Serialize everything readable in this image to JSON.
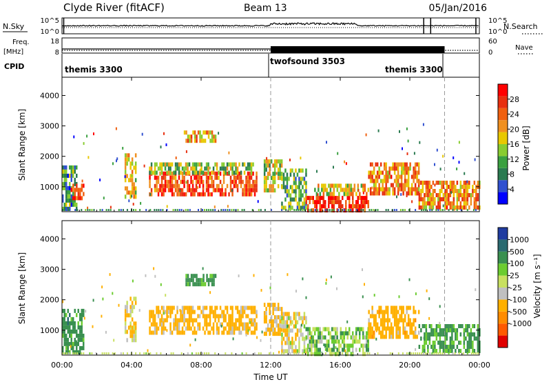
{
  "header": {
    "station": "Clyde River (fitACF)",
    "beam": "Beam 13",
    "date": "05/Jan/2016"
  },
  "noise_panel": {
    "left_label": "N.Sky",
    "right_label": "N.Search",
    "left_ticks": [
      "10^5",
      "10^0"
    ],
    "right_ticks": [
      "10^5",
      "10^0"
    ]
  },
  "freq_panel": {
    "left_label_line1": "Freq.",
    "left_label_line2": "[MHz]",
    "right_label": "Nave",
    "left_ticks": [
      "18",
      "8"
    ],
    "right_ticks": [
      "60",
      "0"
    ]
  },
  "cpid": {
    "label": "CPID",
    "segments": [
      {
        "name": "themis 3300",
        "start_hour": 0,
        "end_hour": 12
      },
      {
        "name": "twofsound 3503",
        "start_hour": 12,
        "end_hour": 22
      },
      {
        "name": "themis 3300",
        "start_hour": 22,
        "end_hour": 24
      }
    ],
    "right_label_text": "themis 3300"
  },
  "colors": {
    "power_scale": [
      "#0000ff",
      "#3050d0",
      "#2a7a50",
      "#3aa040",
      "#88cc30",
      "#e8c800",
      "#f09020",
      "#f06010",
      "#e83010",
      "#ff0000"
    ],
    "velocity_scale": [
      "#e00000",
      "#ff5a00",
      "#ff8c00",
      "#ffb000",
      "#c0c0c0",
      "#c8e060",
      "#6ccc30",
      "#3a9050",
      "#2a6a70",
      "#203ca0"
    ]
  },
  "chart_data": [
    {
      "type": "heatmap",
      "name": "power",
      "ylabel": "Slant Range [km]",
      "xlabel": "",
      "ylim": [
        180,
        4600
      ],
      "xlim": [
        0,
        24
      ],
      "y_ticks": [
        1000,
        2000,
        3000,
        4000
      ],
      "x_ticks": [
        "00:00",
        "04:00",
        "08:00",
        "12:00",
        "16:00",
        "20:00",
        "00:00"
      ],
      "colorbar": {
        "label": "Power [dB]",
        "ticks": [
          4,
          8,
          12,
          16,
          20,
          24,
          28
        ],
        "range": [
          0,
          32
        ]
      },
      "features": [
        {
          "t0": 0.0,
          "t1": 0.8,
          "r0": 300,
          "r1": 1700,
          "value": 10
        },
        {
          "t0": 0.5,
          "t1": 1.2,
          "r0": 600,
          "r1": 1100,
          "value": 26
        },
        {
          "t0": 3.6,
          "t1": 4.2,
          "r0": 700,
          "r1": 2100,
          "value": 18
        },
        {
          "t0": 5.0,
          "t1": 11.2,
          "r0": 700,
          "r1": 1500,
          "value": 26
        },
        {
          "t0": 5.0,
          "t1": 11.0,
          "r0": 1400,
          "r1": 1800,
          "value": 14
        },
        {
          "t0": 7.0,
          "t1": 8.8,
          "r0": 2550,
          "r1": 2850,
          "value": 20
        },
        {
          "t0": 11.6,
          "t1": 12.6,
          "r0": 900,
          "r1": 1900,
          "value": 16
        },
        {
          "t0": 12.6,
          "t1": 14.0,
          "r0": 300,
          "r1": 1600,
          "value": 12
        },
        {
          "t0": 14.0,
          "t1": 17.6,
          "r0": 200,
          "r1": 700,
          "value": 28
        },
        {
          "t0": 14.5,
          "t1": 17.6,
          "r0": 700,
          "r1": 1100,
          "value": 18
        },
        {
          "t0": 17.6,
          "t1": 20.5,
          "r0": 800,
          "r1": 1800,
          "value": 22
        },
        {
          "t0": 20.5,
          "t1": 24.0,
          "r0": 300,
          "r1": 1200,
          "value": 22
        }
      ]
    },
    {
      "type": "heatmap",
      "name": "velocity",
      "ylabel": "Slant Range [km]",
      "xlabel": "Time UT",
      "ylim": [
        180,
        4600
      ],
      "xlim": [
        0,
        24
      ],
      "y_ticks": [
        1000,
        2000,
        3000,
        4000
      ],
      "x_ticks": [
        "00:00",
        "04:00",
        "08:00",
        "12:00",
        "16:00",
        "20:00",
        "00:00"
      ],
      "colorbar": {
        "label": "Velocity [m s⁻¹]",
        "ticks": [
          "1000",
          "500",
          "100",
          "25",
          "-25",
          "-100",
          "-500",
          "-1000"
        ]
      },
      "features": [
        {
          "t0": 0.0,
          "t1": 1.2,
          "r0": 300,
          "r1": 1700,
          "value": 300
        },
        {
          "t0": 3.6,
          "t1": 4.2,
          "r0": 700,
          "r1": 2100,
          "value": -80
        },
        {
          "t0": 5.0,
          "t1": 11.2,
          "r0": 900,
          "r1": 1800,
          "value": -200
        },
        {
          "t0": 7.0,
          "t1": 8.8,
          "r0": 2550,
          "r1": 2850,
          "value": 200
        },
        {
          "t0": 11.6,
          "t1": 12.6,
          "r0": 900,
          "r1": 1900,
          "value": -150
        },
        {
          "t0": 12.6,
          "t1": 14.0,
          "r0": 300,
          "r1": 1600,
          "value": -60
        },
        {
          "t0": 14.0,
          "t1": 17.6,
          "r0": 200,
          "r1": 1100,
          "value": 60
        },
        {
          "t0": 17.6,
          "t1": 20.5,
          "r0": 800,
          "r1": 1800,
          "value": -300
        },
        {
          "t0": 20.5,
          "t1": 24.0,
          "r0": 300,
          "r1": 1200,
          "value": 150
        }
      ]
    }
  ]
}
